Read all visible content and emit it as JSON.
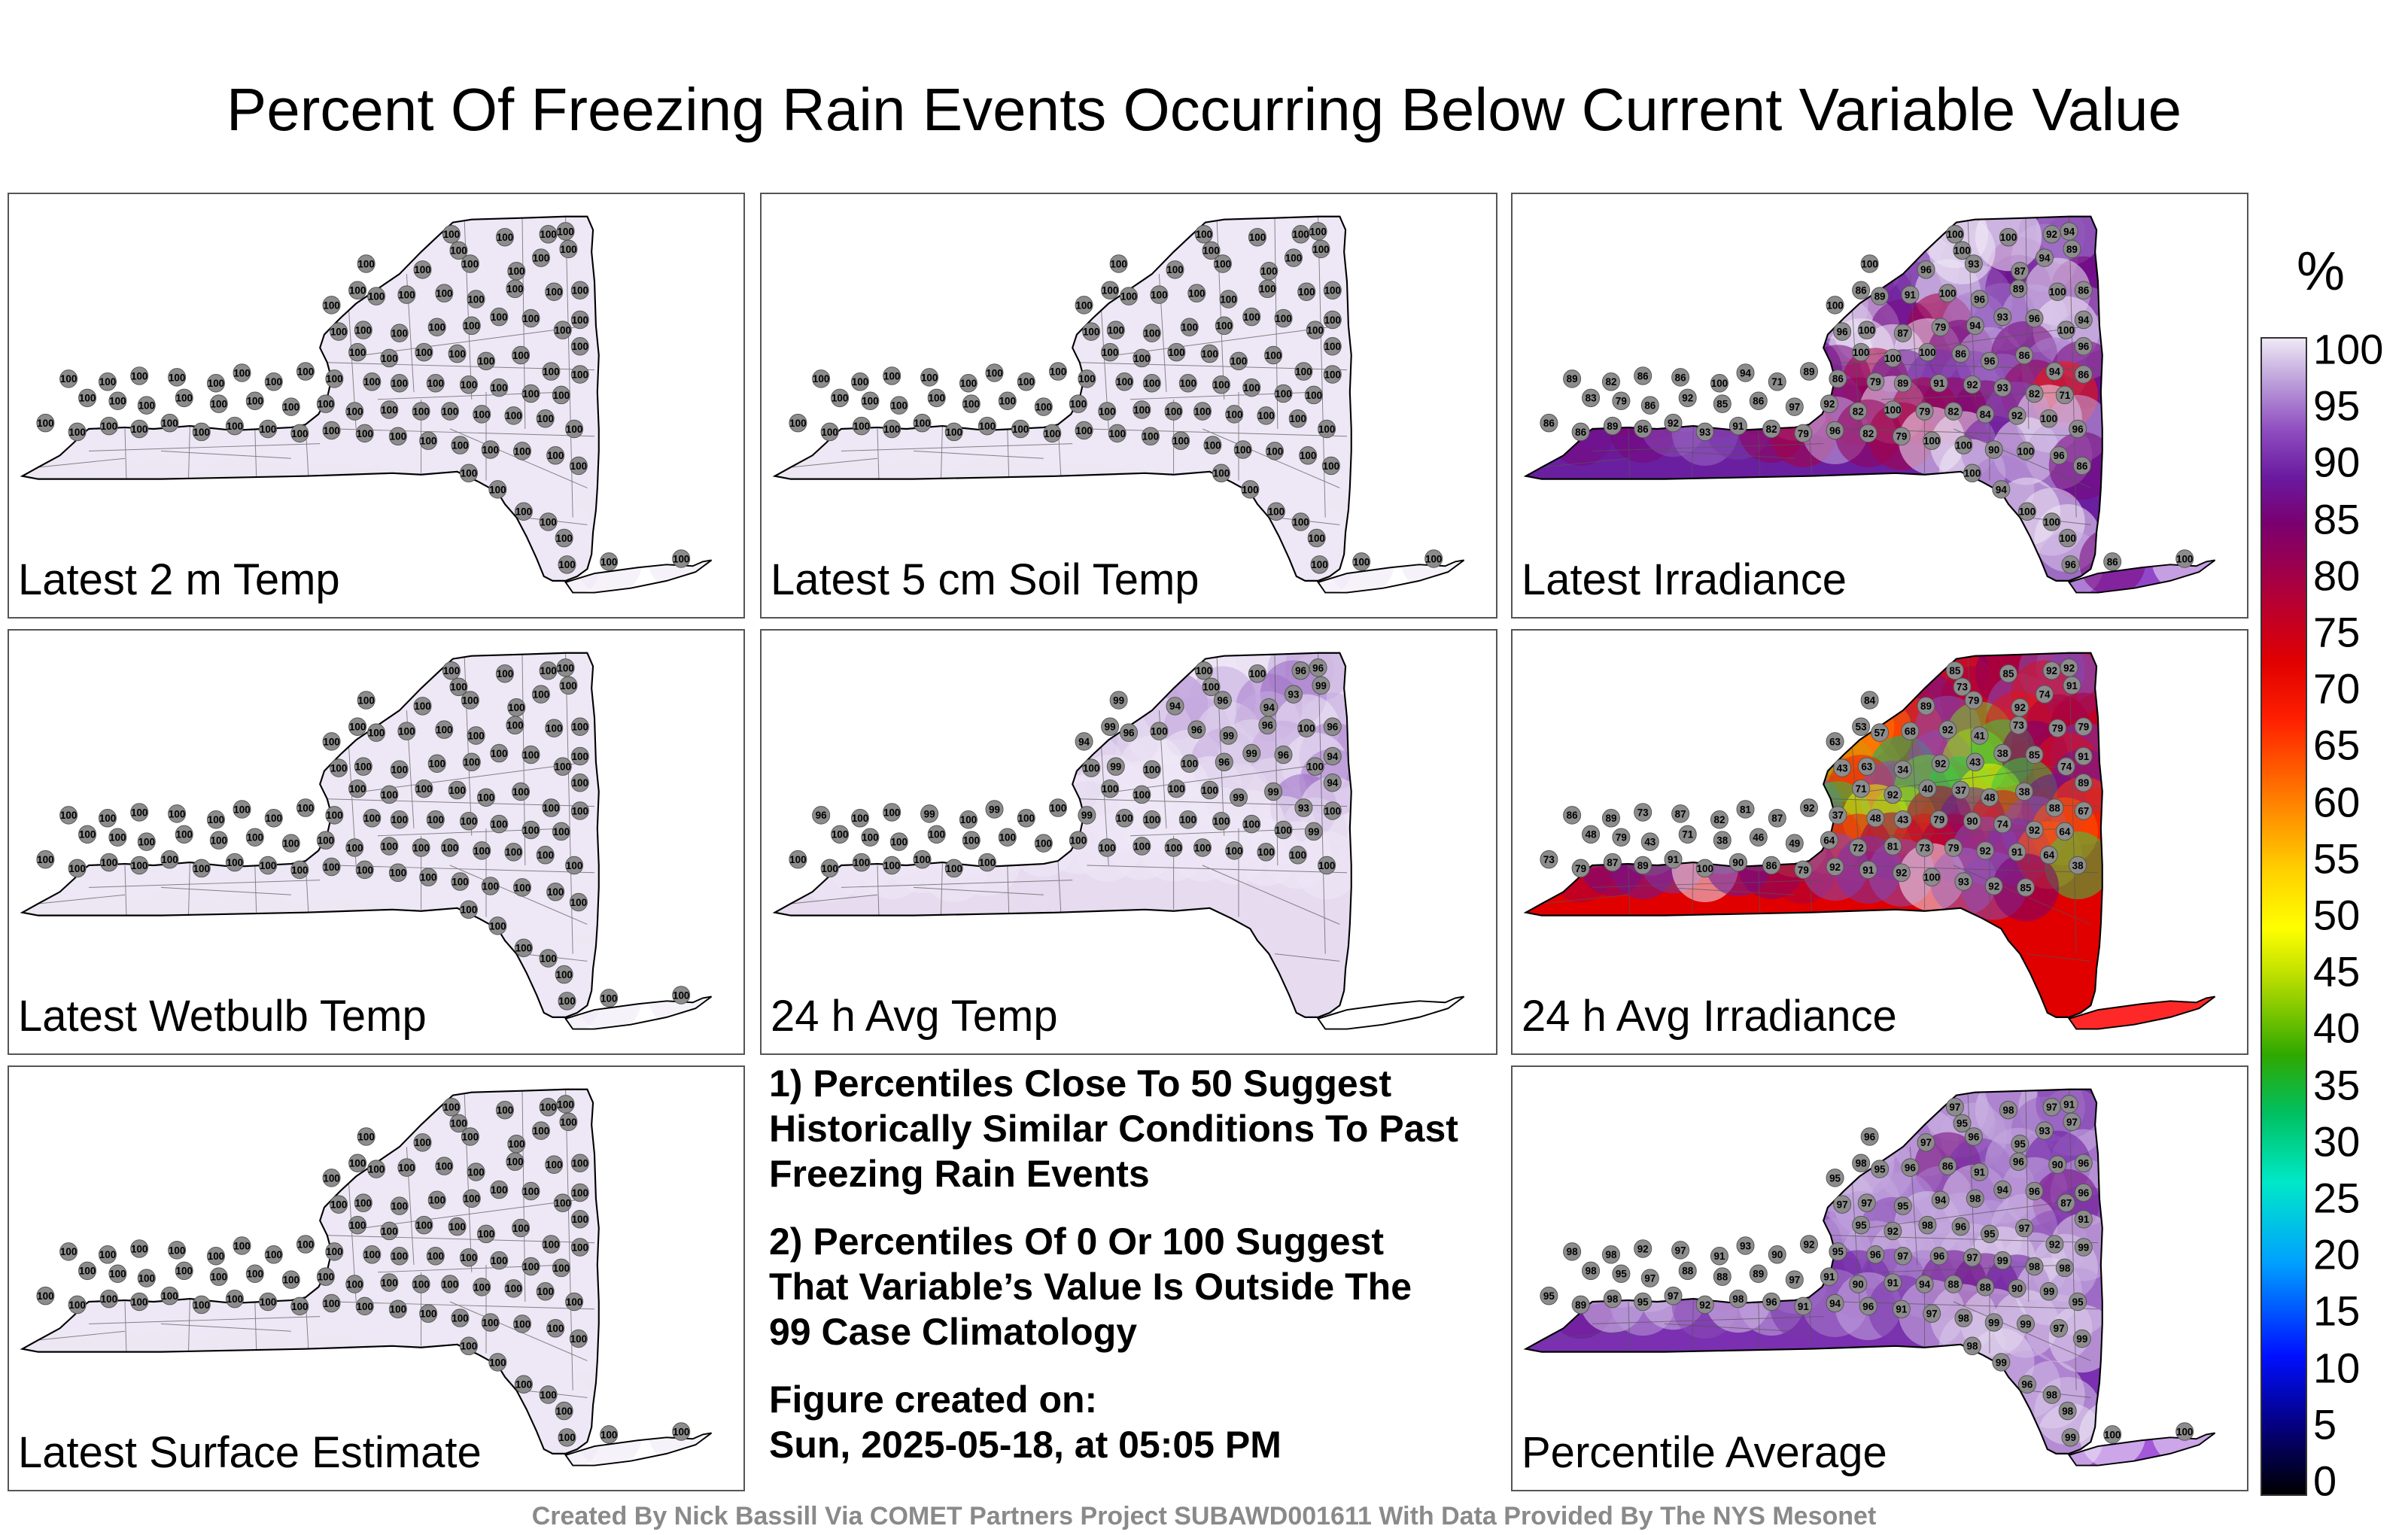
{
  "title": "Percent Of Freezing Rain Events Occurring Below Current Variable Value",
  "panels": [
    {
      "label": "Latest 2 m Temp",
      "fill": "#ede6f3",
      "stations": [
        100,
        100,
        100,
        100,
        100,
        100,
        100,
        100,
        100,
        100,
        100,
        100,
        100,
        100,
        100,
        100,
        100,
        100,
        100,
        100,
        100,
        100,
        100,
        100,
        100,
        100,
        100,
        100,
        100,
        100,
        100,
        100,
        100,
        100,
        100,
        100,
        100,
        100,
        100,
        100,
        100,
        100,
        100,
        100,
        100,
        100,
        100,
        100,
        100,
        100,
        100,
        100,
        100,
        100,
        100,
        100,
        100,
        100,
        100,
        100,
        100,
        100,
        100,
        100,
        100,
        100,
        100,
        100,
        100,
        100,
        100,
        100,
        100,
        100,
        100,
        100,
        100,
        100,
        100,
        100,
        100,
        100,
        100,
        100,
        100,
        100,
        100,
        100,
        100,
        100,
        100,
        100,
        100,
        100,
        100,
        100
      ]
    },
    {
      "label": "Latest 5 cm Soil Temp",
      "fill": "#ede6f3",
      "stations": [
        100,
        100,
        100,
        100,
        100,
        100,
        100,
        100,
        100,
        100,
        100,
        100,
        100,
        100,
        100,
        100,
        100,
        100,
        100,
        100,
        100,
        100,
        100,
        100,
        100,
        100,
        100,
        100,
        100,
        100,
        100,
        100,
        100,
        100,
        100,
        100,
        100,
        100,
        100,
        100,
        100,
        100,
        100,
        100,
        100,
        100,
        100,
        100,
        100,
        100,
        100,
        100,
        100,
        100,
        100,
        100,
        100,
        100,
        100,
        100,
        100,
        100,
        100,
        100,
        100,
        100,
        100,
        100,
        100,
        100,
        100,
        100,
        100,
        100,
        100,
        100,
        100,
        100,
        100,
        100,
        100,
        100,
        100,
        100,
        100,
        100,
        100,
        100,
        100,
        100,
        100,
        100,
        100,
        100,
        100,
        100
      ]
    },
    {
      "label": "Latest Irradiance",
      "fill": "#6a1fa0",
      "stations": [
        97,
        91,
        97,
        92,
        89,
        94,
        100,
        86,
        96,
        93,
        87,
        94,
        86,
        100,
        89,
        91,
        100,
        96,
        89,
        100,
        94,
        96,
        100,
        87,
        79,
        94,
        93,
        96,
        100,
        96,
        100,
        100,
        100,
        86,
        96,
        86,
        94,
        86,
        89,
        82,
        86,
        86,
        100,
        94,
        71,
        89,
        86,
        79,
        89,
        91,
        92,
        93,
        82,
        71,
        83,
        79,
        86,
        92,
        85,
        86,
        97,
        92,
        82,
        100,
        79,
        82,
        84,
        92,
        100,
        96,
        86,
        86,
        89,
        86,
        92,
        93,
        91,
        82,
        79,
        96,
        82,
        79,
        100,
        100,
        90,
        100,
        96,
        86,
        100,
        94,
        100,
        100,
        100,
        96,
        86,
        100,
        100,
        100,
        100
      ]
    },
    {
      "label": "Latest Wetbulb Temp",
      "fill": "#ede6f3",
      "stations": [
        100,
        100,
        100,
        100,
        100,
        100,
        100,
        100,
        100,
        100,
        100,
        100,
        100,
        100,
        100,
        100,
        100,
        100,
        100,
        100,
        100,
        100,
        100,
        100,
        100,
        100,
        100,
        100,
        100,
        100,
        100,
        100,
        100,
        100,
        100,
        100,
        100,
        100,
        100,
        100,
        100,
        100,
        100,
        100,
        100,
        100,
        100,
        100,
        100,
        100,
        100,
        100,
        100,
        100,
        100,
        100,
        100,
        100,
        100,
        100,
        100,
        100,
        100,
        100,
        100,
        100,
        100,
        100,
        100,
        100,
        100,
        100,
        100,
        100,
        100,
        100,
        100,
        100,
        100,
        100,
        100,
        100,
        100,
        100,
        100,
        100,
        100,
        100,
        100,
        100,
        100,
        100,
        100,
        100,
        100,
        100
      ]
    },
    {
      "label": "24 h Avg Temp",
      "fill": "#e6dbef",
      "stations": [
        100,
        100,
        100,
        96,
        99,
        96,
        99,
        99,
        94,
        96,
        94,
        93,
        96,
        94,
        96,
        100,
        96,
        99,
        96,
        100,
        94,
        100,
        99,
        100,
        100,
        96,
        99,
        96,
        100,
        94,
        100,
        100,
        100,
        100,
        99,
        99,
        93,
        100,
        96,
        100,
        100,
        99,
        100,
        99,
        100,
        100,
        99,
        100,
        100,
        100,
        100,
        100,
        100,
        99,
        100,
        100,
        100,
        100,
        100,
        100,
        100,
        100,
        100,
        100,
        100,
        100,
        100,
        100,
        100,
        100,
        100,
        100,
        100,
        100,
        100,
        100,
        100
      ]
    },
    {
      "label": "24 h Avg Irradiance",
      "fill": "#e00000",
      "stations": [
        85,
        73,
        85,
        92,
        91,
        92,
        84,
        53,
        89,
        79,
        92,
        74,
        79,
        63,
        57,
        68,
        92,
        41,
        73,
        79,
        91,
        43,
        63,
        34,
        92,
        43,
        38,
        85,
        74,
        89,
        71,
        92,
        40,
        37,
        48,
        38,
        88,
        67,
        86,
        89,
        73,
        87,
        82,
        81,
        87,
        92,
        37,
        48,
        43,
        79,
        90,
        74,
        92,
        64,
        48,
        79,
        43,
        71,
        38,
        46,
        49,
        64,
        72,
        81,
        73,
        79,
        92,
        91,
        64,
        38,
        73,
        79,
        87,
        89,
        91,
        100,
        90,
        86,
        79,
        92,
        91,
        92,
        100,
        93,
        92,
        85
      ]
    },
    {
      "label": "Latest Surface Estimate",
      "fill": "#ede6f3",
      "stations": [
        100,
        100,
        100,
        100,
        100,
        100,
        100,
        100,
        100,
        100,
        100,
        100,
        100,
        100,
        100,
        100,
        100,
        100,
        100,
        100,
        100,
        100,
        100,
        100,
        100,
        100,
        100,
        100,
        100,
        100,
        100,
        100,
        100,
        100,
        100,
        100,
        100,
        100,
        100,
        100,
        100,
        100,
        100,
        100,
        100,
        100,
        100,
        100,
        100,
        100,
        100,
        100,
        100,
        100,
        100,
        100,
        100,
        100,
        100,
        100,
        100,
        100,
        100,
        100,
        100,
        100,
        100,
        100,
        100,
        100,
        100,
        100,
        100,
        100,
        100,
        100,
        100,
        100,
        100,
        100,
        100,
        100,
        100,
        100,
        100,
        100,
        100,
        100,
        100,
        100,
        100,
        100,
        100,
        100,
        100,
        100
      ]
    },
    {
      "label": "Percentile Average",
      "fill": "#7a30b0",
      "stations": [
        97,
        95,
        98,
        97,
        97,
        91,
        96,
        98,
        97,
        96,
        95,
        93,
        96,
        95,
        95,
        96,
        86,
        91,
        96,
        90,
        96,
        97,
        97,
        95,
        94,
        98,
        94,
        96,
        87,
        91,
        95,
        92,
        98,
        96,
        95,
        97,
        92,
        99,
        98,
        98,
        92,
        97,
        91,
        93,
        90,
        92,
        95,
        96,
        97,
        96,
        97,
        99,
        98,
        98,
        98,
        95,
        97,
        88,
        88,
        89,
        97,
        91,
        90,
        91,
        94,
        88,
        88,
        90,
        99,
        95,
        95,
        89,
        98,
        95,
        97,
        92,
        98,
        96,
        91,
        94,
        96,
        91,
        97,
        98,
        99,
        99,
        97,
        99,
        98,
        99,
        96,
        98,
        98,
        99,
        100,
        100
      ]
    }
  ],
  "notes": {
    "note1": "1) Percentiles Close To 50 Suggest Historically Similar Conditions To Past Freezing Rain Events",
    "note2": "2) Percentiles Of 0 Or 100 Suggest That Variable’s Value Is Outside The 99 Case Climatology",
    "created_label": "Figure created on:",
    "created_date": "Sun, 2025-05-18, at 05:05 PM"
  },
  "colorbar": {
    "unit": "%",
    "ticks": [
      "100",
      "95",
      "90",
      "85",
      "80",
      "75",
      "70",
      "65",
      "60",
      "55",
      "50",
      "45",
      "40",
      "35",
      "30",
      "25",
      "20",
      "15",
      "10",
      "5",
      "0"
    ]
  },
  "footer": "Created By Nick Bassill Via COMET Partners Project SUBAWD001611 With Data Provided By The NYS Mesonet"
}
